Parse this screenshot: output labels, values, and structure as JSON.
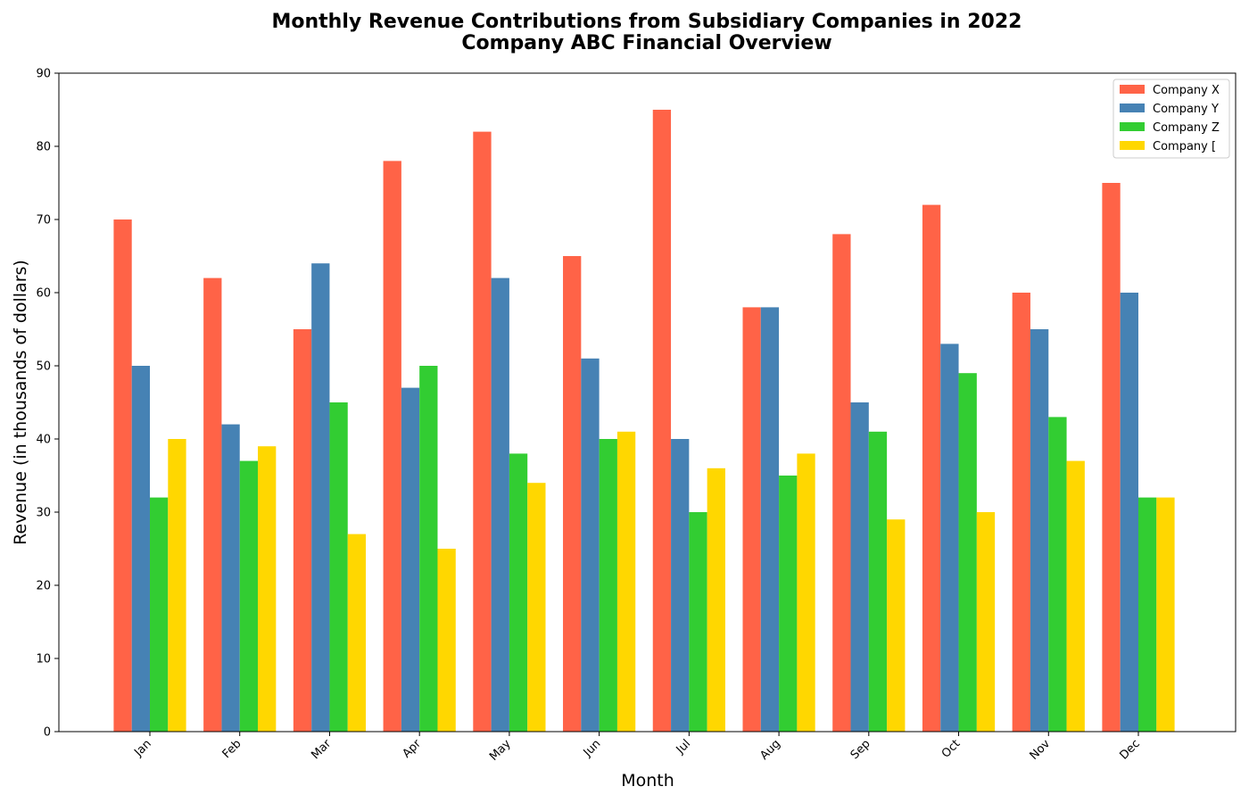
{
  "chart_data": {
    "type": "bar",
    "title": "Monthly Revenue Contributions from Subsidiary Companies in 2022",
    "subtitle": "Company ABC Financial Overview",
    "xlabel": "Month",
    "ylabel": "Revenue (in thousands of dollars)",
    "ylim": [
      0,
      90
    ],
    "yticks": [
      0,
      10,
      20,
      30,
      40,
      50,
      60,
      70,
      80,
      90
    ],
    "grid": false,
    "legend_position": "top-right",
    "categories": [
      "Jan",
      "Feb",
      "Mar",
      "Apr",
      "May",
      "Jun",
      "Jul",
      "Aug",
      "Sep",
      "Oct",
      "Nov",
      "Dec"
    ],
    "series": [
      {
        "name": "Company X",
        "color": "#ff6347",
        "values": [
          70,
          62,
          55,
          78,
          82,
          65,
          85,
          58,
          68,
          72,
          60,
          75
        ]
      },
      {
        "name": "Company Y",
        "color": "#4682b4",
        "values": [
          50,
          42,
          64,
          47,
          62,
          51,
          40,
          58,
          45,
          53,
          55,
          60
        ]
      },
      {
        "name": "Company Z",
        "color": "#32cd32",
        "values": [
          32,
          37,
          45,
          50,
          38,
          40,
          30,
          35,
          41,
          49,
          43,
          32
        ]
      },
      {
        "name": "Company [",
        "color": "#ffd700",
        "values": [
          40,
          39,
          27,
          25,
          34,
          41,
          36,
          38,
          29,
          30,
          37,
          32
        ]
      }
    ]
  }
}
